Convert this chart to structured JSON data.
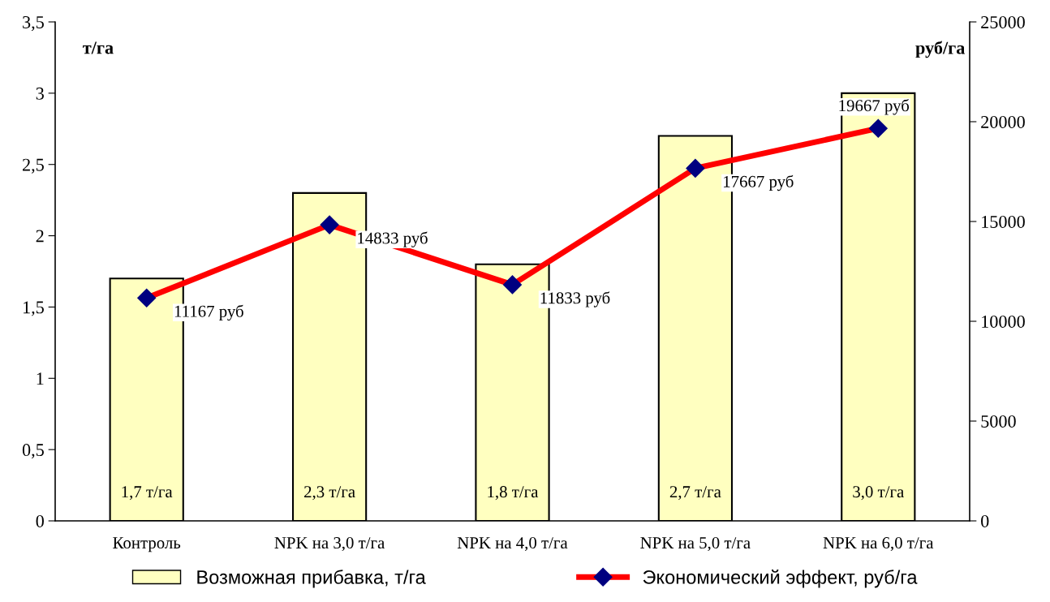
{
  "chart_data": {
    "type": "bar",
    "categories": [
      "Контроль",
      "NPK на 3,0 т/га",
      "NPK на 4,0 т/га",
      "NPK на 5,0 т/га",
      "NPK на 6,0 т/га"
    ],
    "series": [
      {
        "name": "Возможная прибавка, т/га",
        "color": "#ffffc0",
        "values": [
          1.7,
          2.3,
          1.8,
          2.7,
          3.0
        ],
        "value_labels": [
          "1,7 т/га",
          "2,3 т/га",
          "1,8 т/га",
          "2,7 т/га",
          "3,0 т/га"
        ]
      },
      {
        "name": "Экономический эффект, руб/га",
        "type": "line",
        "axis": "y2",
        "color": "#ff0000",
        "marker": "diamond",
        "line_style": "solid",
        "values": [
          11167,
          14833,
          11833,
          17667,
          19667
        ],
        "value_labels": [
          "11167 руб",
          "14833 руб",
          "11833 руб",
          "17667 руб",
          "19667 руб"
        ]
      }
    ],
    "ylabel": "т/га",
    "y2label": "руб/га",
    "ylim": [
      0,
      3.5
    ],
    "yticks": [
      0,
      {
        "value": 0.5,
        "label": "0,5"
      },
      1,
      {
        "value": 1.5,
        "label": "1,5"
      },
      2,
      {
        "value": 2.5,
        "label": "2,5"
      },
      3,
      {
        "value": 3.5,
        "label": "3,5"
      }
    ],
    "y2lim": [
      0,
      25000
    ],
    "y2ticks": [
      0,
      5000,
      10000,
      15000,
      20000,
      25000
    ],
    "grid": false,
    "legend": "bottom"
  }
}
